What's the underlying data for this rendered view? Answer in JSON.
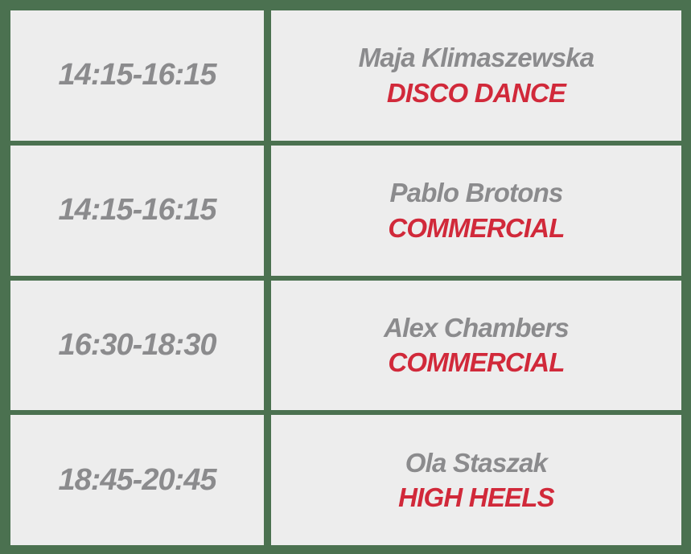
{
  "schedule": {
    "rows": [
      {
        "time": "14:15-16:15",
        "instructor": "Maja Klimaszewska",
        "class_name": "DISCO DANCE"
      },
      {
        "time": "14:15-16:15",
        "instructor": "Pablo Brotons",
        "class_name": "COMMERCIAL"
      },
      {
        "time": "16:30-18:30",
        "instructor": "Alex Chambers",
        "class_name": "COMMERCIAL"
      },
      {
        "time": "18:45-20:45",
        "instructor": "Ola Staszak",
        "class_name": "HIGH HEELS"
      }
    ]
  },
  "colors": {
    "border_green": "#4b7150",
    "cell_background": "#ededed",
    "text_gray": "#8b8b8d",
    "class_red": "#d1293a"
  }
}
